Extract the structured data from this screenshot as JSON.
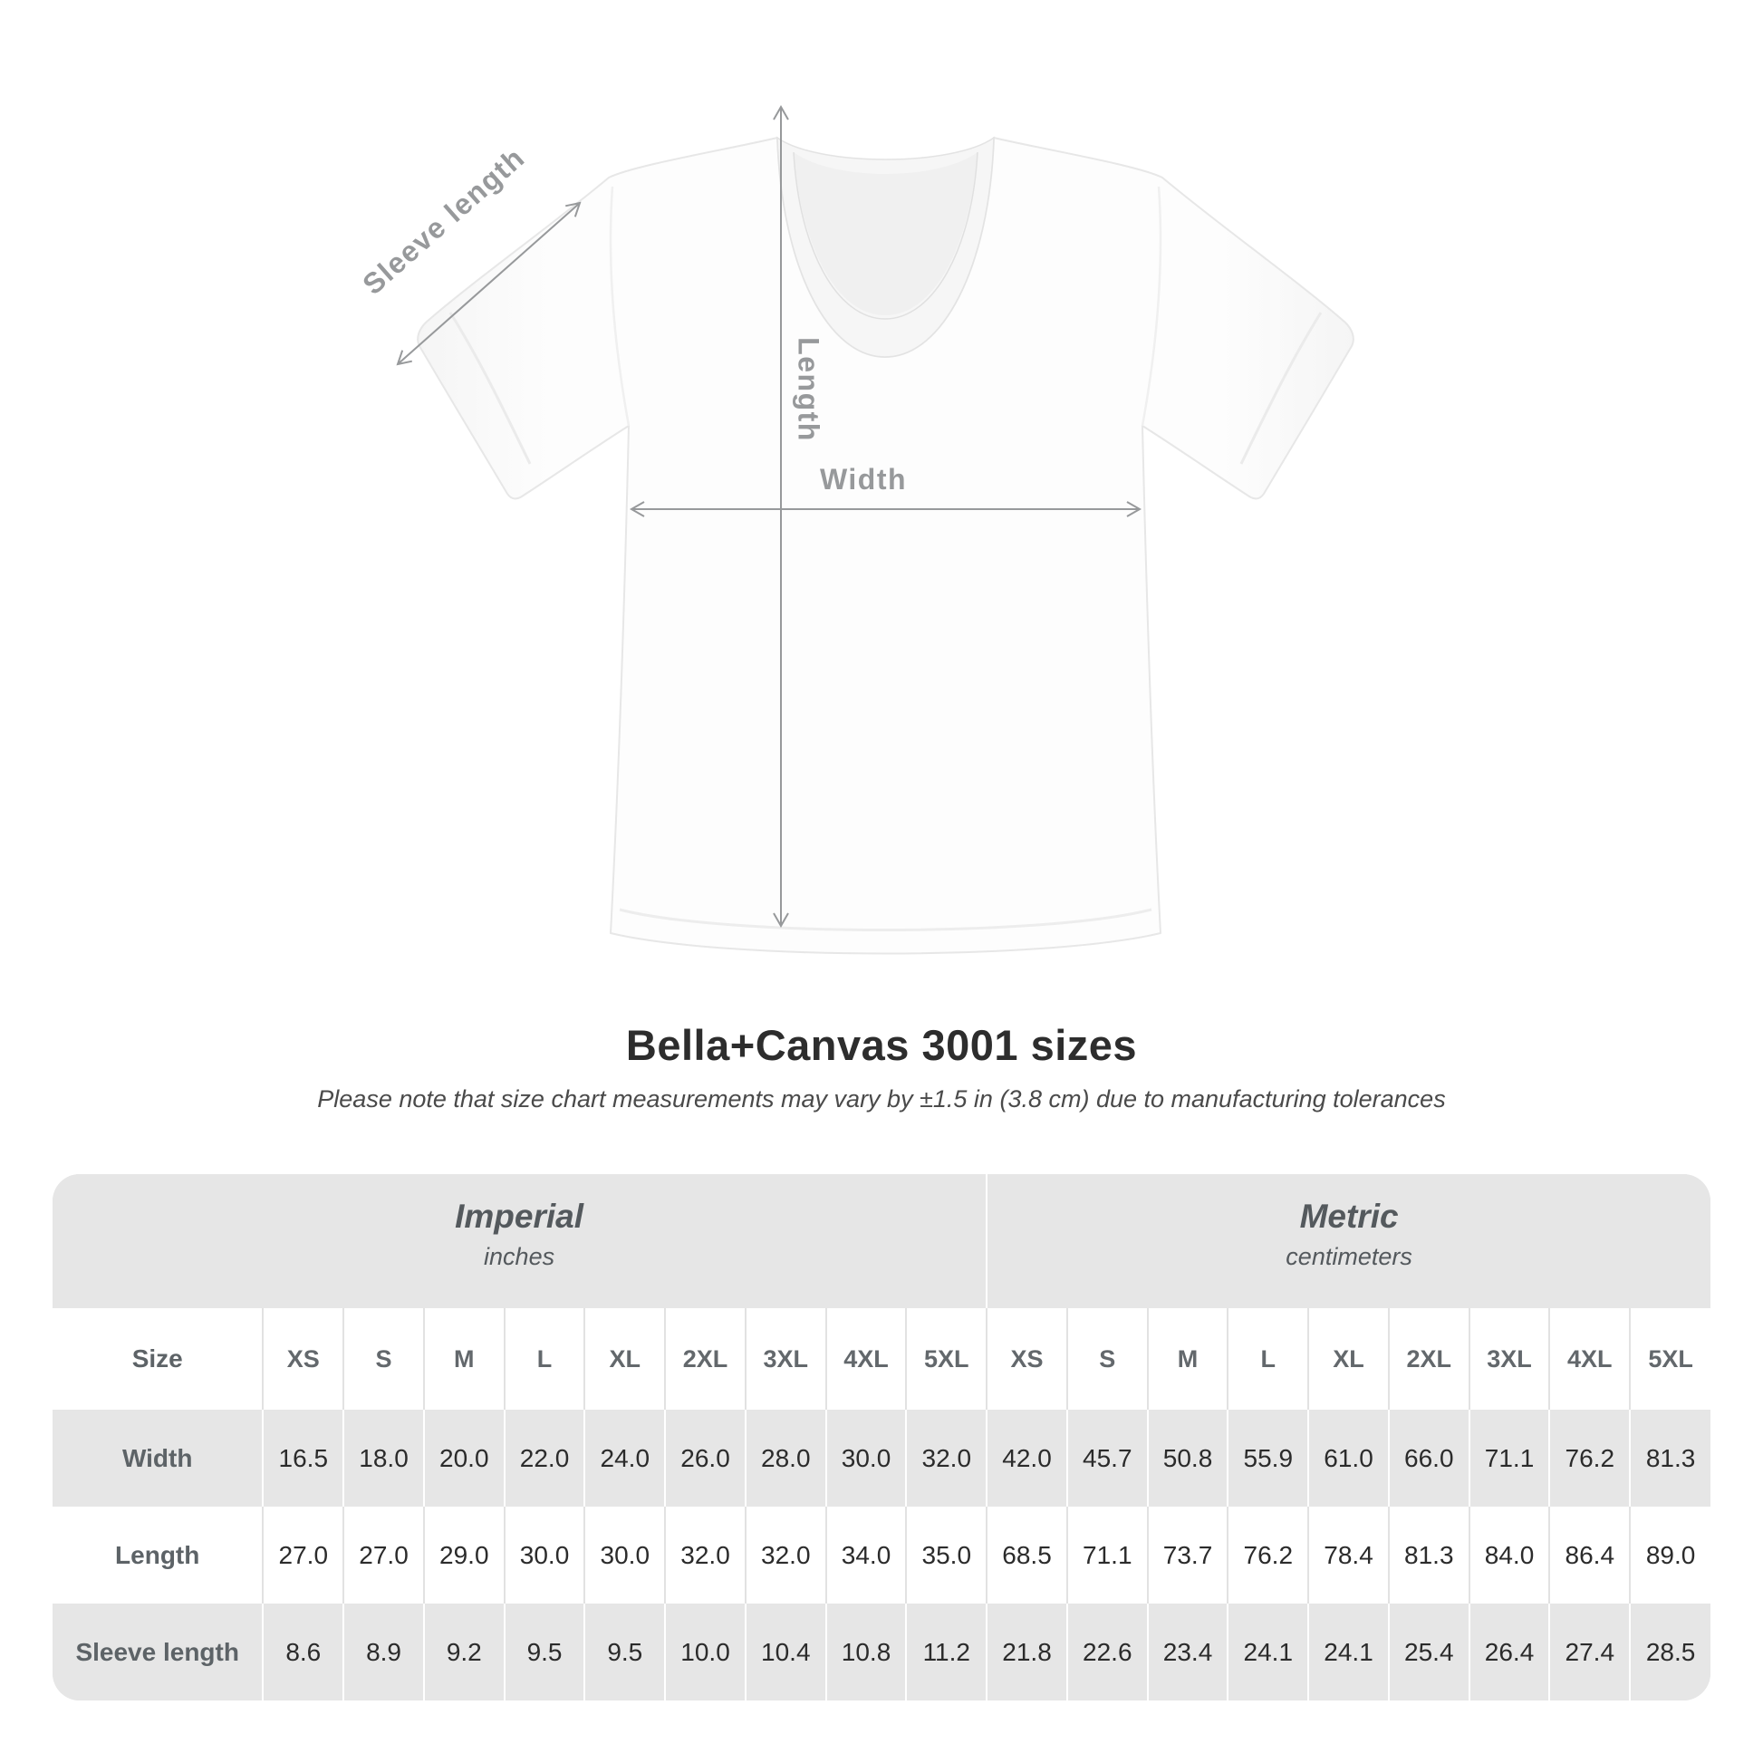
{
  "diagram": {
    "sleeve_length_label": "Sleeve length",
    "length_label": "Length",
    "width_label": "Width",
    "annotation_color": "#97999b",
    "shirt_color": "#fcfcfc"
  },
  "heading": {
    "title": "Bella+Canvas 3001 sizes",
    "subtitle": "Please note that size chart measurements may vary by ±1.5 in (3.8 cm) due to manufacturing tolerances"
  },
  "size_table": {
    "unit_groups": [
      {
        "label": "Imperial",
        "sublabel": "inches",
        "span": 10
      },
      {
        "label": "Metric",
        "sublabel": "centimeters",
        "span": 9
      }
    ],
    "size_column_label": "Size",
    "imperial_sizes": [
      "XS",
      "S",
      "M",
      "L",
      "XL",
      "2XL",
      "3XL",
      "4XL",
      "5XL"
    ],
    "metric_sizes": [
      "XS",
      "S",
      "M",
      "L",
      "XL",
      "2XL",
      "3XL",
      "4XL",
      "5XL"
    ],
    "rows": [
      {
        "label": "Width",
        "imperial": [
          "16.5",
          "18.0",
          "20.0",
          "22.0",
          "24.0",
          "26.0",
          "28.0",
          "30.0",
          "32.0"
        ],
        "metric": [
          "42.0",
          "45.7",
          "50.8",
          "55.9",
          "61.0",
          "66.0",
          "71.1",
          "76.2",
          "81.3"
        ]
      },
      {
        "label": "Length",
        "imperial": [
          "27.0",
          "27.0",
          "29.0",
          "30.0",
          "30.0",
          "32.0",
          "32.0",
          "34.0",
          "35.0"
        ],
        "metric": [
          "68.5",
          "71.1",
          "73.7",
          "76.2",
          "78.4",
          "81.3",
          "84.0",
          "86.4",
          "89.0"
        ]
      },
      {
        "label": "Sleeve length",
        "imperial": [
          "8.6",
          "8.9",
          "9.2",
          "9.5",
          "9.5",
          "10.0",
          "10.4",
          "10.8",
          "11.2"
        ],
        "metric": [
          "21.8",
          "22.6",
          "23.4",
          "24.1",
          "24.1",
          "25.4",
          "26.4",
          "27.4",
          "28.5"
        ]
      }
    ],
    "colors": {
      "band_bg": "#e6e6e6",
      "row_white": "#ffffff",
      "separator_on_gray": "#ffffff",
      "separator_on_white": "#e2e2e2",
      "header_text": "#63686c",
      "value_text": "#2b2b2b"
    }
  },
  "chart_data": {
    "type": "table",
    "title": "Bella+Canvas 3001 sizes",
    "note": "Please note that size chart measurements may vary by ±1.5 in (3.8 cm) due to manufacturing tolerances",
    "unit_groups": [
      {
        "name": "Imperial",
        "unit": "inches"
      },
      {
        "name": "Metric",
        "unit": "centimeters"
      }
    ],
    "categories": [
      "XS",
      "S",
      "M",
      "L",
      "XL",
      "2XL",
      "3XL",
      "4XL",
      "5XL"
    ],
    "series": [
      {
        "name": "Width (inches)",
        "values": [
          16.5,
          18.0,
          20.0,
          22.0,
          24.0,
          26.0,
          28.0,
          30.0,
          32.0
        ]
      },
      {
        "name": "Length (inches)",
        "values": [
          27.0,
          27.0,
          29.0,
          30.0,
          30.0,
          32.0,
          32.0,
          34.0,
          35.0
        ]
      },
      {
        "name": "Sleeve length (inches)",
        "values": [
          8.6,
          8.9,
          9.2,
          9.5,
          9.5,
          10.0,
          10.4,
          10.8,
          11.2
        ]
      },
      {
        "name": "Width (cm)",
        "values": [
          42.0,
          45.7,
          50.8,
          55.9,
          61.0,
          66.0,
          71.1,
          76.2,
          81.3
        ]
      },
      {
        "name": "Length (cm)",
        "values": [
          68.5,
          71.1,
          73.7,
          76.2,
          78.4,
          81.3,
          84.0,
          86.4,
          89.0
        ]
      },
      {
        "name": "Sleeve length (cm)",
        "values": [
          21.8,
          22.6,
          23.4,
          24.1,
          24.1,
          25.4,
          26.4,
          27.4,
          28.5
        ]
      }
    ]
  }
}
